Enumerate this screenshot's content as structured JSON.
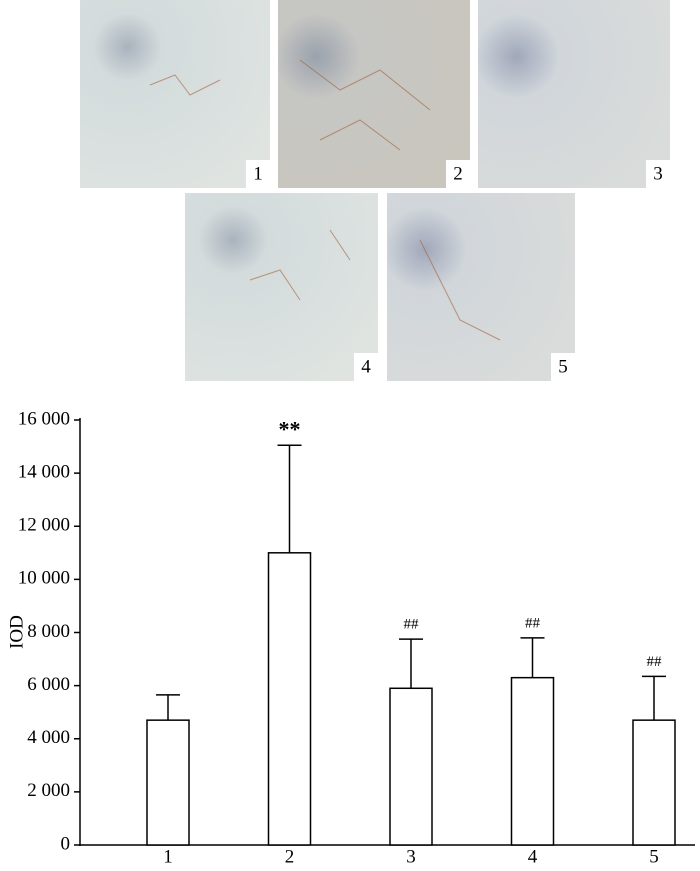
{
  "panels": {
    "labels": [
      "1",
      "2",
      "3",
      "4",
      "5"
    ]
  },
  "chart_data": {
    "type": "bar",
    "y_label": "IOD",
    "categories": [
      "1",
      "2",
      "3",
      "4",
      "5"
    ],
    "values": [
      4700,
      11000,
      5900,
      6300,
      4700
    ],
    "errors": [
      950,
      4050,
      1850,
      1500,
      1650
    ],
    "significance": [
      null,
      "**",
      "##",
      "##",
      "##"
    ],
    "color": "#ffffff",
    "ylim": [
      0,
      16000
    ],
    "yticks": [
      0,
      {
        "value": 2000,
        "label": "2 000"
      },
      {
        "value": 4000,
        "label": "4 000"
      },
      {
        "value": 6000,
        "label": "6 000"
      },
      {
        "value": 8000,
        "label": "8 000"
      },
      {
        "value": 10000,
        "label": "10 000"
      },
      {
        "value": 12000,
        "label": "12 000"
      },
      {
        "value": 14000,
        "label": "14 000"
      },
      {
        "value": 16000,
        "label": "16 000"
      }
    ],
    "grid": false
  }
}
